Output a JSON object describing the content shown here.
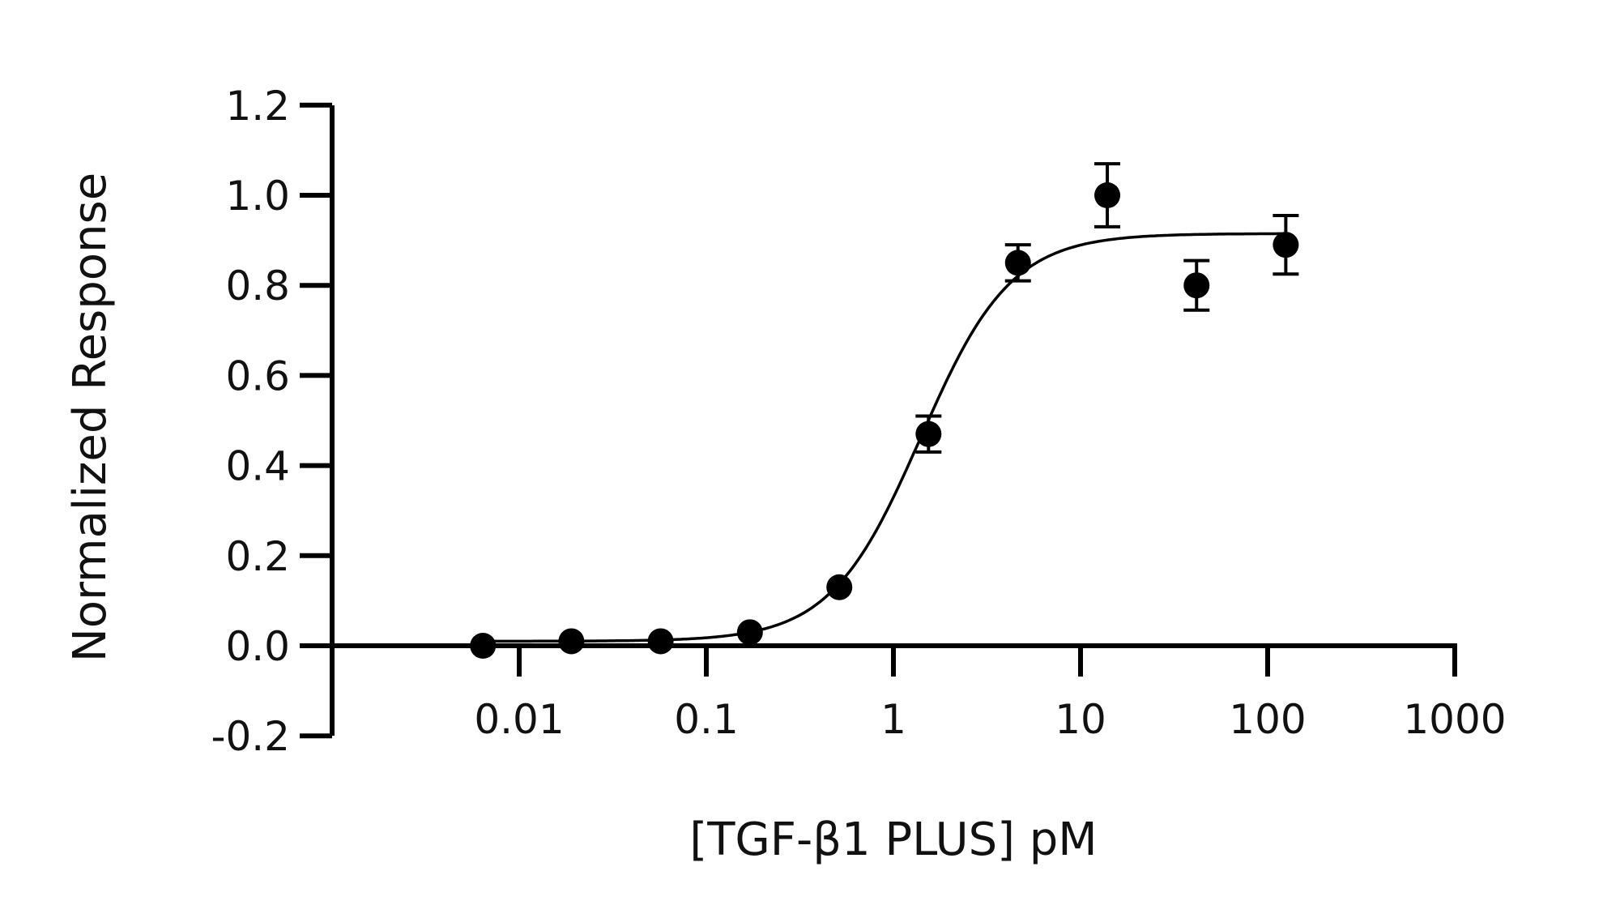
{
  "chart_data": {
    "type": "scatter",
    "title": "",
    "xlabel": "[TGF-β1 PLUS] pM",
    "ylabel": "Normalized Response",
    "x_scale": "log",
    "xlim": [
      0.001,
      1000
    ],
    "ylim": [
      -0.2,
      1.2
    ],
    "x_ticks": [
      0.01,
      0.1,
      1,
      10,
      100,
      1000
    ],
    "x_tick_labels": [
      "0.01",
      "0.1",
      "1",
      "10",
      "100",
      "1000"
    ],
    "y_ticks": [
      -0.2,
      0,
      0.2,
      0.4,
      0.6,
      0.8,
      1.0,
      1.2
    ],
    "y_tick_labels": [
      "-0.2",
      "0.0",
      "0.2",
      "0.4",
      "0.6",
      "0.8",
      "1.0",
      "1.2"
    ],
    "grid": false,
    "legend": "none",
    "marker_color": "#000000",
    "series": [
      {
        "x": [
          0.0064,
          0.019,
          0.057,
          0.171,
          0.514,
          1.54,
          4.63,
          13.9,
          41.7,
          125
        ],
        "y": [
          0.0,
          0.01,
          0.01,
          0.03,
          0.13,
          0.47,
          0.85,
          1.0,
          0.8,
          0.89
        ],
        "yerr": [
          0.0,
          0.0,
          0.0,
          0.0,
          0.0,
          0.04,
          0.04,
          0.07,
          0.055,
          0.065
        ]
      }
    ],
    "fit": {
      "model": "4PL",
      "bottom": 0.01,
      "top": 0.915,
      "ec50": 1.4,
      "hill": 1.8
    }
  }
}
